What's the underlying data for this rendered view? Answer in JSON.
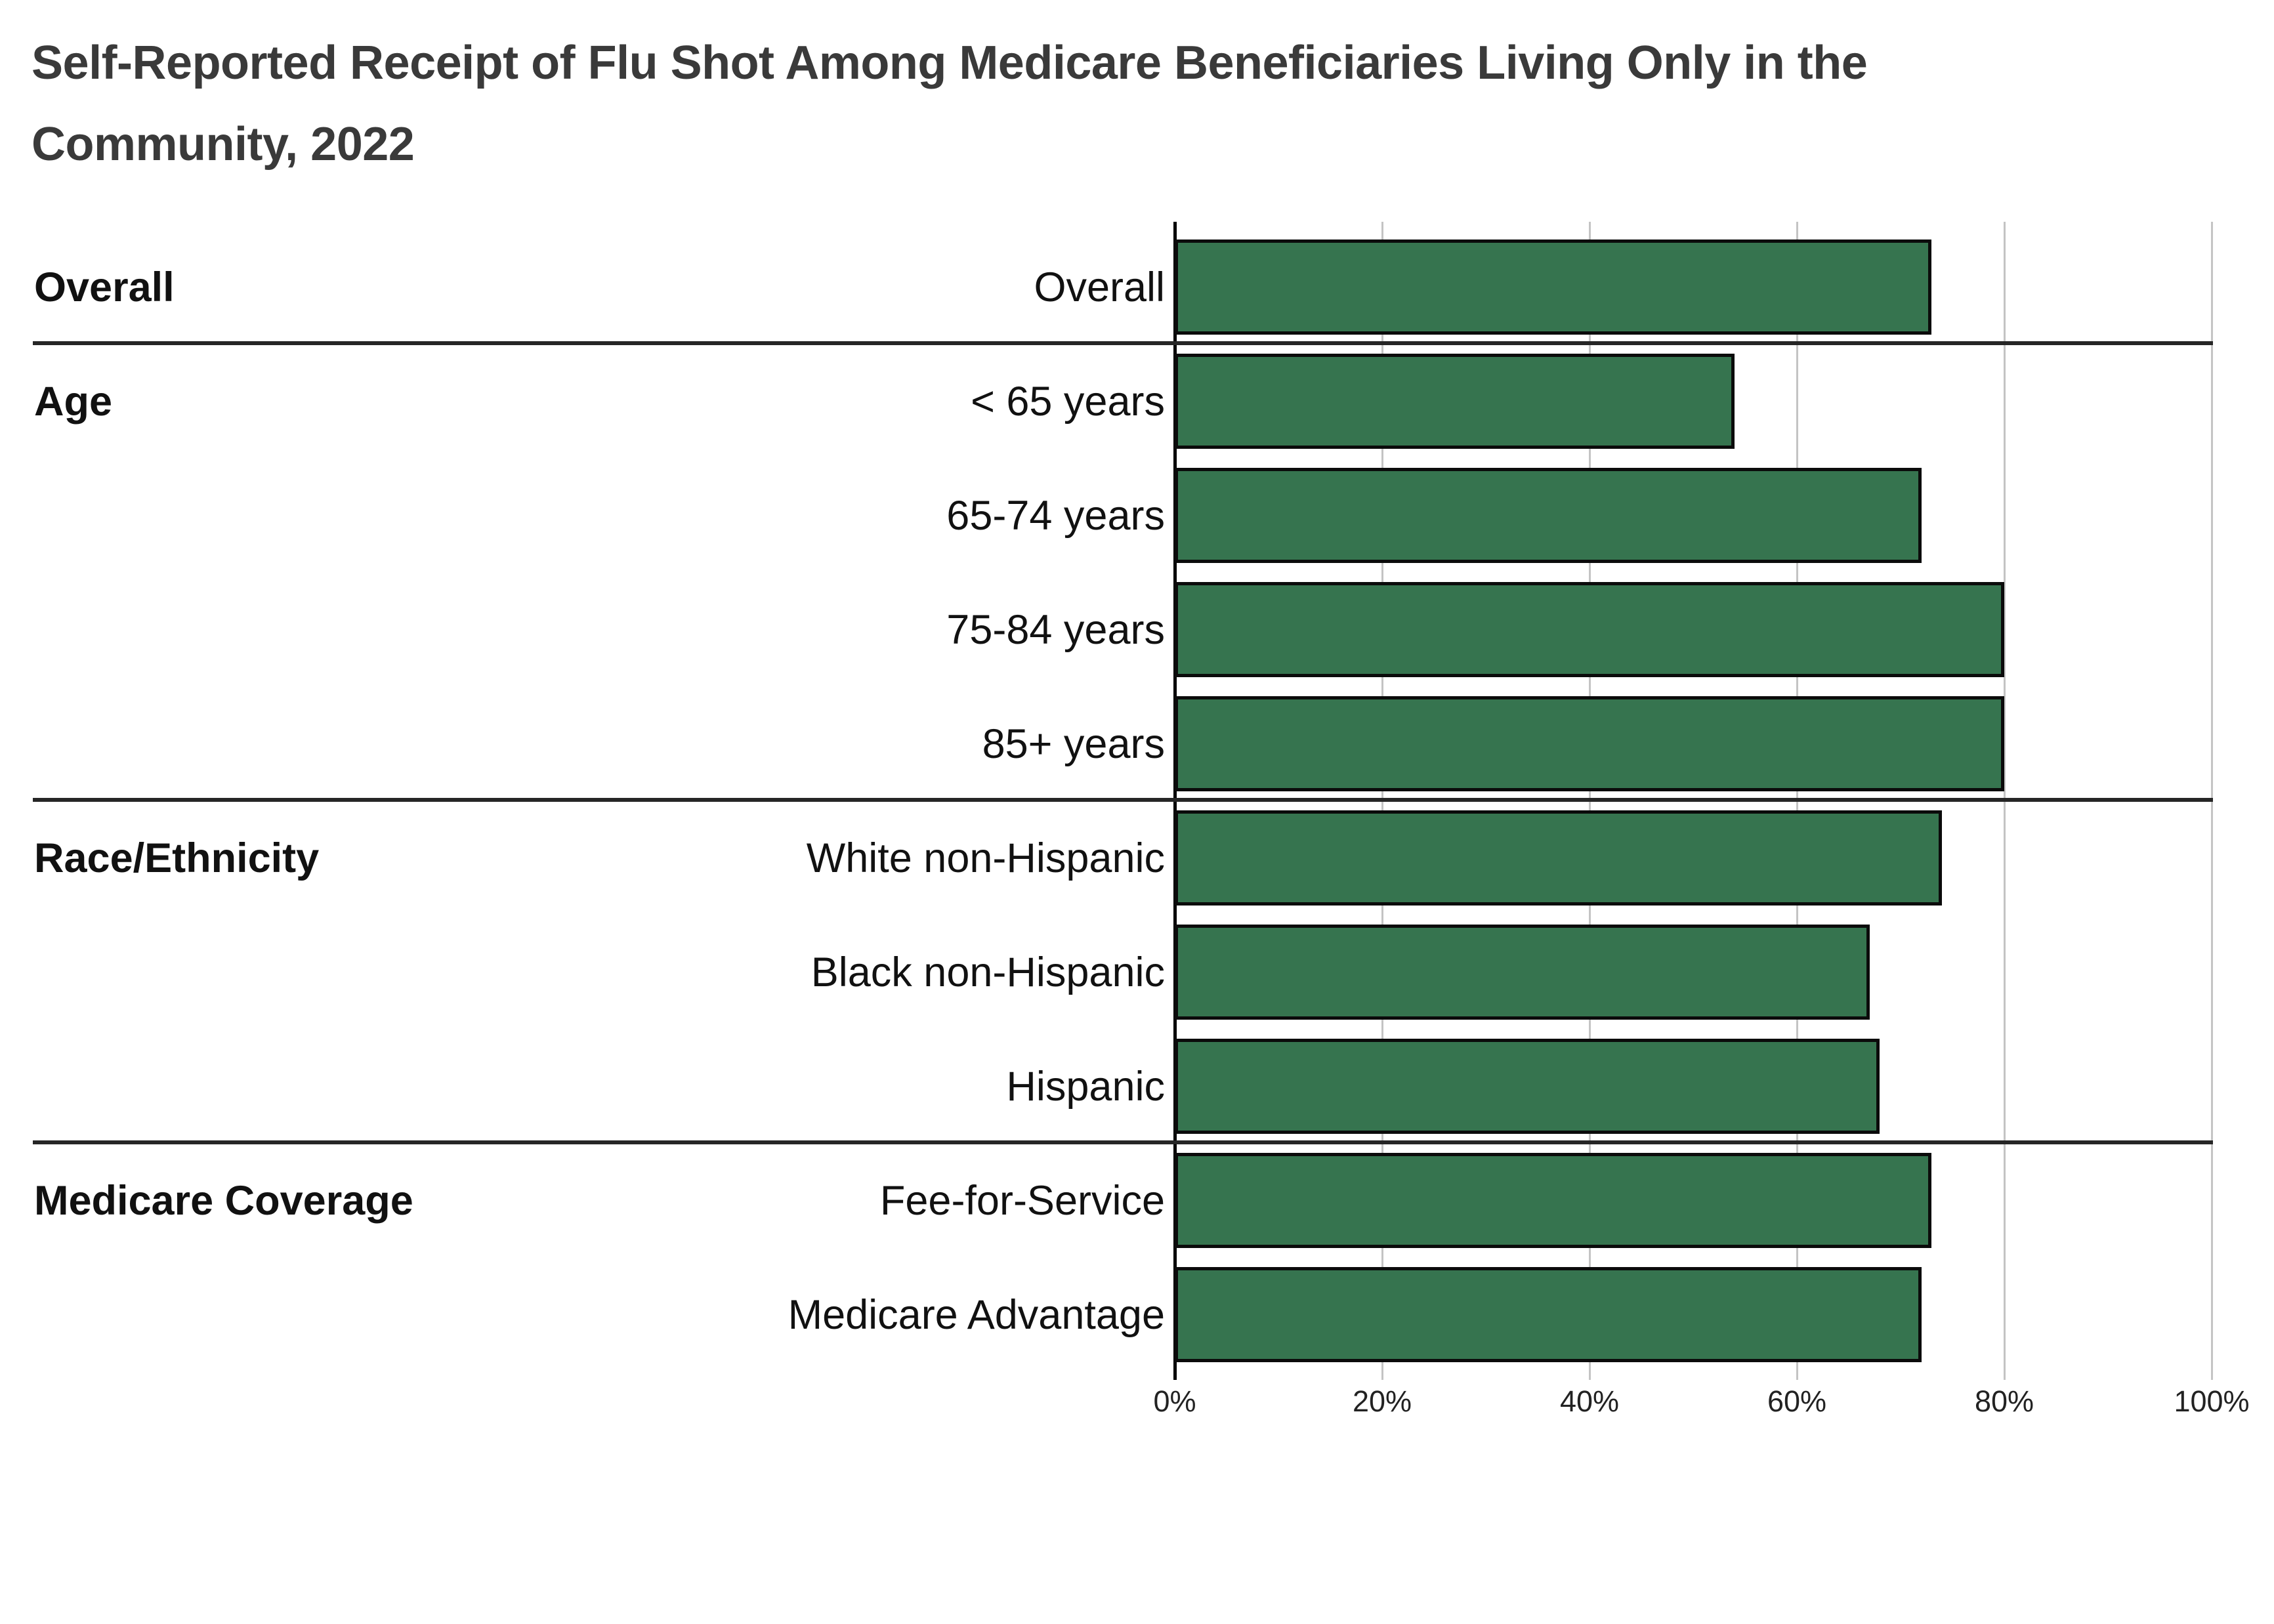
{
  "title": {
    "lines": [
      "Self-Reported Receipt of Flu Shot Among Medicare Beneficiaries Living Only in the",
      "Community, 2022"
    ],
    "full": "Self-Reported Receipt of Flu Shot Among Medicare Beneficiaries Living Only in the Community, 2022"
  },
  "colors": {
    "bar_fill": "#36744F",
    "bar_border": "#0b0b0b",
    "axis_line": "#000000",
    "gridline": "#c4c4c4",
    "separator_line": "#262626",
    "title_text": "#3a3a3a",
    "label_text": "#111111",
    "background": "#ffffff"
  },
  "chart_data": {
    "type": "bar",
    "orientation": "horizontal",
    "unit": "%",
    "title": "Self-Reported Receipt of Flu Shot Among Medicare Beneficiaries Living Only in the Community, 2022",
    "xlabel": "",
    "ylabel": "",
    "xlim": [
      0,
      100
    ],
    "grid": true,
    "legend": false,
    "x_axis": {
      "ticks": [
        {
          "label": "0%",
          "value": 0
        },
        {
          "label": "20%",
          "value": 20
        },
        {
          "label": "40%",
          "value": 40
        },
        {
          "label": "60%",
          "value": 60
        },
        {
          "label": "80%",
          "value": 80
        },
        {
          "label": "100%",
          "value": 100
        }
      ]
    },
    "groups": [
      {
        "name": "Overall",
        "rows": [
          {
            "label": "Overall",
            "value": 73
          }
        ]
      },
      {
        "name": "Age",
        "rows": [
          {
            "label": "< 65 years",
            "value": 54
          },
          {
            "label": "65-74 years",
            "value": 72
          },
          {
            "label": "75-84 years",
            "value": 80
          },
          {
            "label": "85+ years",
            "value": 80
          }
        ]
      },
      {
        "name": "Race/Ethnicity",
        "rows": [
          {
            "label": "White non-Hispanic",
            "value": 74
          },
          {
            "label": "Black non-Hispanic",
            "value": 67
          },
          {
            "label": "Hispanic",
            "value": 68
          }
        ]
      },
      {
        "name": "Medicare Coverage",
        "rows": [
          {
            "label": "Fee-for-Service",
            "value": 73
          },
          {
            "label": "Medicare Advantage",
            "value": 72
          }
        ]
      }
    ]
  }
}
